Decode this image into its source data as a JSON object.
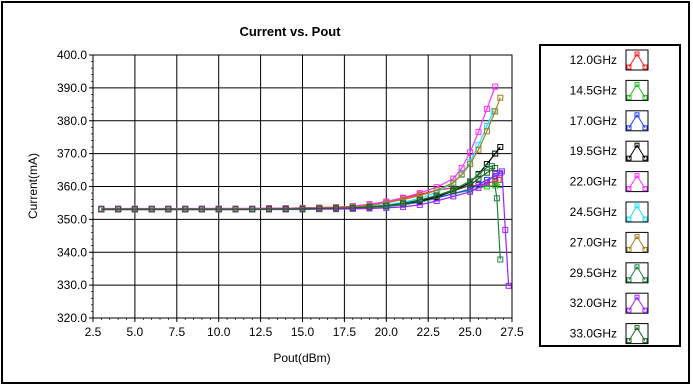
{
  "chart_data": {
    "type": "line",
    "title": "Current vs. Pout",
    "xlabel": "Pout(dBm)",
    "ylabel": "Current(mA)",
    "xlim": [
      2.5,
      27.5
    ],
    "ylim": [
      320.0,
      400.0
    ],
    "x_ticks": [
      "2.5",
      "5.0",
      "7.5",
      "10.0",
      "12.5",
      "15.0",
      "17.5",
      "20.0",
      "22.5",
      "25.0",
      "27.5"
    ],
    "y_ticks": [
      "320.0",
      "330.0",
      "340.0",
      "350.0",
      "360.0",
      "370.0",
      "380.0",
      "390.0",
      "400.0"
    ],
    "grid": true,
    "legend_position": "right",
    "series": [
      {
        "name": "12.0GHz",
        "color": "#ff2020",
        "x": [
          3,
          4,
          5,
          6,
          7,
          8,
          9,
          10,
          11,
          12,
          13,
          14,
          15,
          16,
          17,
          18,
          19,
          20,
          21,
          22,
          23,
          24,
          25,
          25.5,
          26,
          26.5,
          26.7
        ],
        "y": [
          353.2,
          353.2,
          353.2,
          353.2,
          353.2,
          353.2,
          353.3,
          353.3,
          353.3,
          353.3,
          353.4,
          353.4,
          353.5,
          353.6,
          353.7,
          354.0,
          354.6,
          355.4,
          356.4,
          357.6,
          358.8,
          359.6,
          360.2,
          360.4,
          361.0,
          361.5,
          362.0
        ]
      },
      {
        "name": "14.5GHz",
        "color": "#20c020",
        "x": [
          3,
          4,
          5,
          6,
          7,
          8,
          9,
          10,
          11,
          12,
          13,
          14,
          15,
          16,
          17,
          18,
          19,
          20,
          21,
          22,
          23,
          24,
          25,
          25.5,
          26,
          26.5,
          26.8
        ],
        "y": [
          353.0,
          353.0,
          353.0,
          353.0,
          353.0,
          353.0,
          353.0,
          353.0,
          353.0,
          353.0,
          353.1,
          353.1,
          353.2,
          353.2,
          353.3,
          353.4,
          353.6,
          353.9,
          354.4,
          355.2,
          356.4,
          357.8,
          358.8,
          359.6,
          360.0,
          360.3,
          360.5
        ]
      },
      {
        "name": "17.0GHz",
        "color": "#2040ff",
        "x": [
          3,
          4,
          5,
          6,
          7,
          8,
          9,
          10,
          11,
          12,
          13,
          14,
          15,
          16,
          17,
          18,
          19,
          20,
          21,
          22,
          23,
          24,
          25,
          25.5,
          26,
          26.5,
          26.8
        ],
        "y": [
          353.0,
          353.0,
          353.0,
          353.0,
          353.0,
          353.0,
          353.0,
          353.0,
          353.0,
          353.1,
          353.1,
          353.1,
          353.2,
          353.2,
          353.3,
          353.4,
          353.6,
          354.0,
          354.6,
          355.4,
          356.6,
          357.8,
          359.2,
          360.6,
          362.0,
          363.2,
          364.0
        ]
      },
      {
        "name": "19.5GHz",
        "color": "#000000",
        "x": [
          3,
          4,
          5,
          6,
          7,
          8,
          9,
          10,
          11,
          12,
          13,
          14,
          15,
          16,
          17,
          18,
          19,
          20,
          21,
          22,
          23,
          24,
          25,
          25.5,
          26,
          26.5,
          26.8
        ],
        "y": [
          353.1,
          353.1,
          353.1,
          353.1,
          353.1,
          353.1,
          353.1,
          353.1,
          353.1,
          353.2,
          353.2,
          353.2,
          353.3,
          353.3,
          353.4,
          353.6,
          353.8,
          354.2,
          354.8,
          355.6,
          356.8,
          358.6,
          361.2,
          363.8,
          366.8,
          370.0,
          372.0
        ]
      },
      {
        "name": "22.0GHz",
        "color": "#ff30ff",
        "x": [
          3,
          4,
          5,
          6,
          7,
          8,
          9,
          10,
          11,
          12,
          13,
          14,
          15,
          16,
          17,
          18,
          19,
          20,
          21,
          22,
          23,
          24,
          24.5,
          25,
          25.5,
          26,
          26.5
        ],
        "y": [
          353.3,
          353.3,
          353.3,
          353.3,
          353.3,
          353.3,
          353.3,
          353.3,
          353.3,
          353.3,
          353.4,
          353.4,
          353.5,
          353.6,
          353.7,
          354.0,
          354.6,
          355.4,
          356.6,
          358.0,
          359.8,
          362.4,
          365.6,
          370.4,
          376.6,
          383.6,
          390.4
        ]
      },
      {
        "name": "24.5GHz",
        "color": "#20e0ff",
        "x": [
          3,
          4,
          5,
          6,
          7,
          8,
          9,
          10,
          11,
          12,
          13,
          14,
          15,
          16,
          17,
          18,
          19,
          20,
          21,
          22,
          23,
          24,
          24.5,
          25,
          25.5,
          26,
          26.4
        ],
        "y": [
          353.1,
          353.1,
          353.1,
          353.1,
          353.1,
          353.1,
          353.1,
          353.1,
          353.1,
          353.2,
          353.2,
          353.2,
          353.3,
          353.3,
          353.4,
          353.6,
          353.9,
          354.4,
          355.2,
          356.4,
          358.2,
          361.0,
          363.8,
          367.4,
          372.6,
          378.4,
          383.0
        ]
      },
      {
        "name": "27.0GHz",
        "color": "#a08020",
        "x": [
          3,
          4,
          5,
          6,
          7,
          8,
          9,
          10,
          11,
          12,
          13,
          14,
          15,
          16,
          17,
          18,
          19,
          20,
          21,
          22,
          23,
          24,
          24.5,
          25,
          25.5,
          26,
          26.5,
          26.8
        ],
        "y": [
          353.2,
          353.2,
          353.2,
          353.2,
          353.2,
          353.2,
          353.2,
          353.2,
          353.2,
          353.2,
          353.3,
          353.3,
          353.4,
          353.5,
          353.6,
          353.8,
          354.2,
          355.0,
          356.0,
          357.2,
          358.8,
          361.2,
          363.6,
          366.8,
          371.2,
          376.8,
          382.8,
          387.0
        ]
      },
      {
        "name": "29.5GHz",
        "color": "#208040",
        "x": [
          3,
          4,
          5,
          6,
          7,
          8,
          9,
          10,
          11,
          12,
          13,
          14,
          15,
          16,
          17,
          18,
          19,
          20,
          21,
          22,
          23,
          24,
          25,
          25.5,
          26,
          26.3,
          26.6,
          26.8
        ],
        "y": [
          353.0,
          353.0,
          353.0,
          353.0,
          353.0,
          353.0,
          353.0,
          353.0,
          353.0,
          353.0,
          353.1,
          353.1,
          353.2,
          353.2,
          353.3,
          353.4,
          353.6,
          354.0,
          354.8,
          355.8,
          357.2,
          359.0,
          361.6,
          363.6,
          365.8,
          366.2,
          356.4,
          337.8
        ]
      },
      {
        "name": "32.0GHz",
        "color": "#a020ff",
        "x": [
          3,
          4,
          5,
          6,
          7,
          8,
          9,
          10,
          11,
          12,
          13,
          14,
          15,
          16,
          17,
          18,
          19,
          20,
          21,
          22,
          23,
          24,
          25,
          25.5,
          26,
          26.5,
          26.9,
          27.1,
          27.3
        ],
        "y": [
          353.0,
          353.0,
          353.0,
          353.0,
          353.0,
          353.0,
          353.0,
          353.0,
          353.0,
          353.0,
          353.0,
          353.0,
          353.0,
          353.1,
          353.1,
          353.2,
          353.3,
          353.5,
          353.8,
          354.4,
          355.6,
          357.0,
          358.4,
          359.6,
          361.2,
          363.8,
          364.6,
          346.8,
          329.8
        ]
      },
      {
        "name": "33.0GHz",
        "color": "#206020",
        "x": [
          3,
          4,
          5,
          6,
          7,
          8,
          9,
          10,
          11,
          12,
          13,
          14,
          15,
          16,
          17,
          18,
          19,
          20,
          21,
          22,
          23,
          24,
          25,
          25.5,
          26,
          26.5
        ],
        "y": [
          353.1,
          353.1,
          353.1,
          353.1,
          353.1,
          353.1,
          353.1,
          353.1,
          353.1,
          353.1,
          353.2,
          353.2,
          353.2,
          353.3,
          353.4,
          353.5,
          353.8,
          354.2,
          354.9,
          355.9,
          357.2,
          358.6,
          360.4,
          362.4,
          364.2,
          365.6
        ]
      }
    ]
  }
}
